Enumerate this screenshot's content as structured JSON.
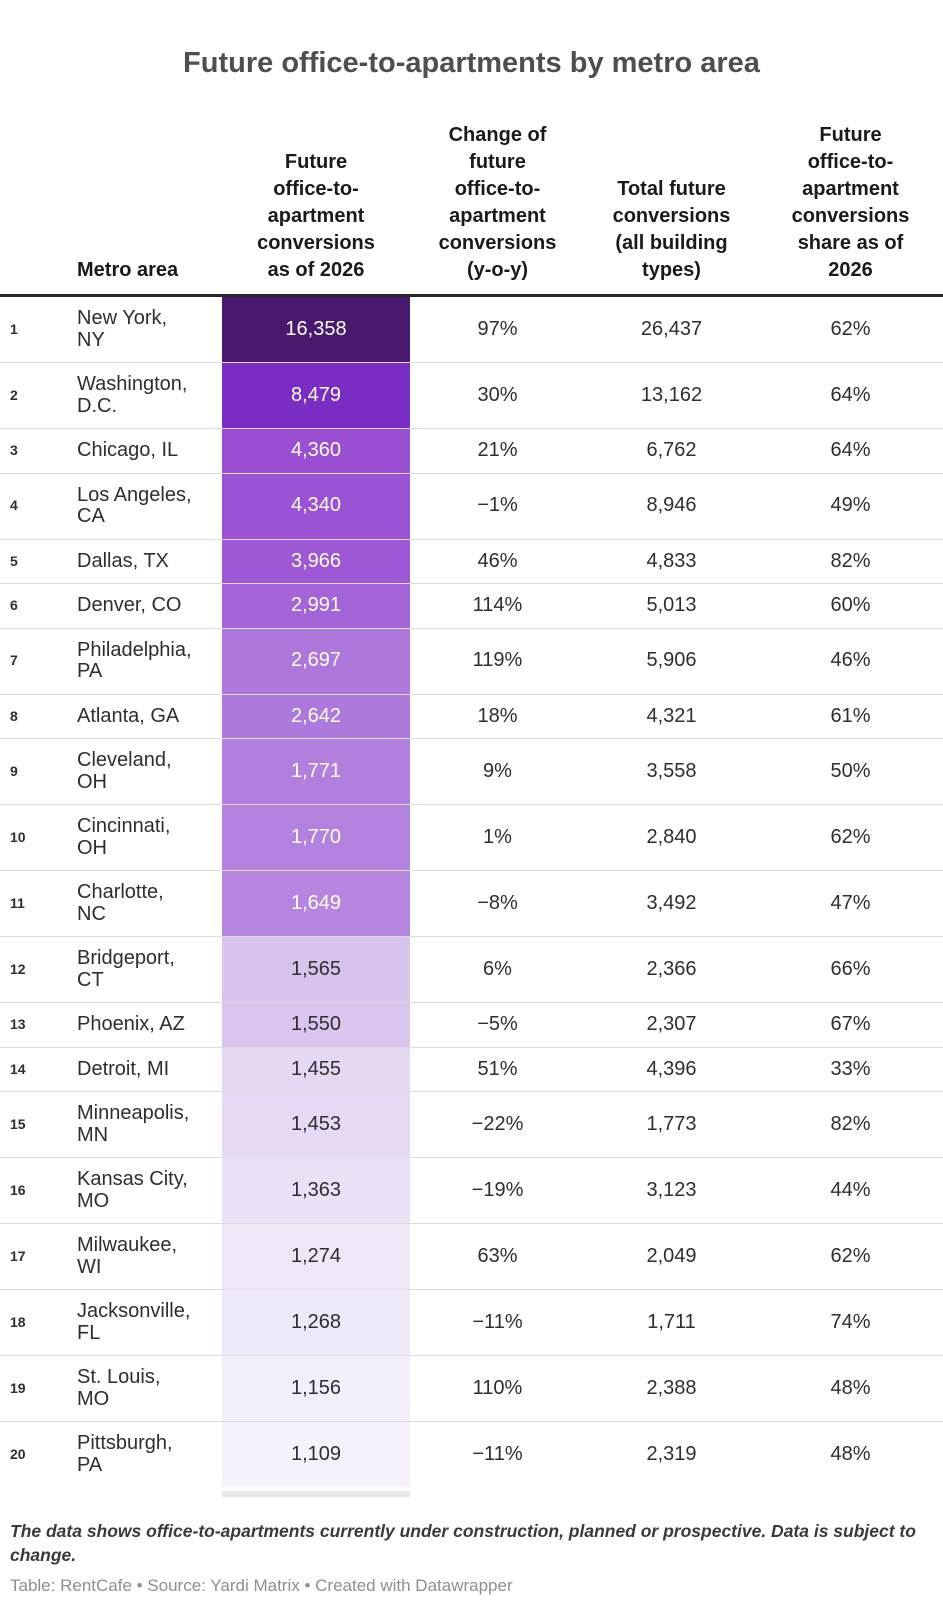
{
  "title": "Future office-to-apartments by metro area",
  "colors": {
    "background": "#ffffff",
    "title_text": "#4e4e4e",
    "header_text": "#1a1a1a",
    "header_rule": "#282828",
    "row_separator": "#dcdcdc",
    "body_text": "#2e2e2e",
    "footnote_text": "#3a3a3a",
    "source_text": "#8f8f8f",
    "heatmap_dark": "#491970",
    "heatmap_light": "#f6f1fb"
  },
  "table": {
    "columns": [
      {
        "key": "rank",
        "label": ""
      },
      {
        "key": "metro",
        "label": "Metro area"
      },
      {
        "key": "conversions",
        "label": "Future\noffice-to-\napartment\nconversions\nas of 2026"
      },
      {
        "key": "change",
        "label": "Change of\nfuture\noffice-to-\napartment\nconversions\n(y-o-y)"
      },
      {
        "key": "total",
        "label": "Total future\nconversions\n(all building\ntypes)"
      },
      {
        "key": "share",
        "label": "Future\noffice-to-\napartment\nconversions\nshare as of\n2026"
      }
    ],
    "rows": [
      {
        "rank": "1",
        "metro": "New York,\nNY",
        "conversions": "16,358",
        "change": "97%",
        "total": "26,437",
        "share": "62%",
        "cell_bg": "#491970",
        "cell_text": "#ffffff"
      },
      {
        "rank": "2",
        "metro": "Washington,\nD.C.",
        "conversions": "8,479",
        "change": "30%",
        "total": "13,162",
        "share": "64%",
        "cell_bg": "#7b2cc2",
        "cell_text": "#ffffff"
      },
      {
        "rank": "3",
        "metro": "Chicago, IL",
        "conversions": "4,360",
        "change": "21%",
        "total": "6,762",
        "share": "64%",
        "cell_bg": "#9a4fd3",
        "cell_text": "#ffffff"
      },
      {
        "rank": "4",
        "metro": "Los Angeles,\nCA",
        "conversions": "4,340",
        "change": "−1%",
        "total": "8,946",
        "share": "49%",
        "cell_bg": "#9b52d4",
        "cell_text": "#ffffff"
      },
      {
        "rank": "5",
        "metro": "Dallas, TX",
        "conversions": "3,966",
        "change": "46%",
        "total": "4,833",
        "share": "82%",
        "cell_bg": "#9e58d6",
        "cell_text": "#ffffff"
      },
      {
        "rank": "6",
        "metro": "Denver, CO",
        "conversions": "2,991",
        "change": "114%",
        "total": "5,013",
        "share": "60%",
        "cell_bg": "#a464d8",
        "cell_text": "#ffffff"
      },
      {
        "rank": "7",
        "metro": "Philadelphia,\nPA",
        "conversions": "2,697",
        "change": "119%",
        "total": "5,906",
        "share": "46%",
        "cell_bg": "#ad77db",
        "cell_text": "#ffffff"
      },
      {
        "rank": "8",
        "metro": "Atlanta, GA",
        "conversions": "2,642",
        "change": "18%",
        "total": "4,321",
        "share": "61%",
        "cell_bg": "#ae79dc",
        "cell_text": "#ffffff"
      },
      {
        "rank": "9",
        "metro": "Cleveland,\nOH",
        "conversions": "1,771",
        "change": "9%",
        "total": "3,558",
        "share": "50%",
        "cell_bg": "#b27fde",
        "cell_text": "#ffffff"
      },
      {
        "rank": "10",
        "metro": "Cincinnati,\nOH",
        "conversions": "1,770",
        "change": "1%",
        "total": "2,840",
        "share": "62%",
        "cell_bg": "#b382df",
        "cell_text": "#ffffff"
      },
      {
        "rank": "11",
        "metro": "Charlotte,\nNC",
        "conversions": "1,649",
        "change": "−8%",
        "total": "3,492",
        "share": "47%",
        "cell_bg": "#b685e0",
        "cell_text": "#ffffff"
      },
      {
        "rank": "12",
        "metro": "Bridgeport,\nCT",
        "conversions": "1,565",
        "change": "6%",
        "total": "2,366",
        "share": "66%",
        "cell_bg": "#d8c3ec",
        "cell_text": "#2e2e2e"
      },
      {
        "rank": "13",
        "metro": "Phoenix, AZ",
        "conversions": "1,550",
        "change": "−5%",
        "total": "2,307",
        "share": "67%",
        "cell_bg": "#d9c5ed",
        "cell_text": "#2e2e2e"
      },
      {
        "rank": "14",
        "metro": "Detroit, MI",
        "conversions": "1,455",
        "change": "51%",
        "total": "4,396",
        "share": "33%",
        "cell_bg": "#e5d8f3",
        "cell_text": "#2e2e2e"
      },
      {
        "rank": "15",
        "metro": "Minneapolis,\nMN",
        "conversions": "1,453",
        "change": "−22%",
        "total": "1,773",
        "share": "82%",
        "cell_bg": "#e6d9f3",
        "cell_text": "#2e2e2e"
      },
      {
        "rank": "16",
        "metro": "Kansas City,\nMO",
        "conversions": "1,363",
        "change": "−19%",
        "total": "3,123",
        "share": "44%",
        "cell_bg": "#ebe1f6",
        "cell_text": "#2e2e2e"
      },
      {
        "rank": "17",
        "metro": "Milwaukee,\nWI",
        "conversions": "1,274",
        "change": "63%",
        "total": "2,049",
        "share": "62%",
        "cell_bg": "#efe7f8",
        "cell_text": "#2e2e2e"
      },
      {
        "rank": "18",
        "metro": "Jacksonville,\nFL",
        "conversions": "1,268",
        "change": "−11%",
        "total": "1,711",
        "share": "74%",
        "cell_bg": "#efe8f8",
        "cell_text": "#2e2e2e"
      },
      {
        "rank": "19",
        "metro": "St. Louis,\nMO",
        "conversions": "1,156",
        "change": "110%",
        "total": "2,388",
        "share": "48%",
        "cell_bg": "#f4eefa",
        "cell_text": "#2e2e2e"
      },
      {
        "rank": "20",
        "metro": "Pittsburgh,\nPA",
        "conversions": "1,109",
        "change": "−11%",
        "total": "2,319",
        "share": "48%",
        "cell_bg": "#f6f1fb",
        "cell_text": "#2e2e2e"
      }
    ]
  },
  "footnote": "The data shows office-to-apartments currently under construction, planned or prospective. Data is subject to change.",
  "source": "Table: RentCafe • Source: Yardi Matrix • Created with Datawrapper",
  "chart_data": {
    "type": "table",
    "title": "Future office-to-apartments by metro area",
    "column_headers": [
      "Metro area",
      "Future office-to-apartment conversions as of 2026",
      "Change of future office-to-apartment conversions (y-o-y)",
      "Total future conversions (all building types)",
      "Future office-to-apartment conversions share as of 2026"
    ],
    "metros": [
      "New York, NY",
      "Washington, D.C.",
      "Chicago, IL",
      "Los Angeles, CA",
      "Dallas, TX",
      "Denver, CO",
      "Philadelphia, PA",
      "Atlanta, GA",
      "Cleveland, OH",
      "Cincinnati, OH",
      "Charlotte, NC",
      "Bridgeport, CT",
      "Phoenix, AZ",
      "Detroit, MI",
      "Minneapolis, MN",
      "Kansas City, MO",
      "Milwaukee, WI",
      "Jacksonville, FL",
      "St. Louis, MO",
      "Pittsburgh, PA"
    ],
    "series": [
      {
        "name": "Future office-to-apartment conversions as of 2026",
        "values": [
          16358,
          8479,
          4360,
          4340,
          3966,
          2991,
          2697,
          2642,
          1771,
          1770,
          1649,
          1565,
          1550,
          1455,
          1453,
          1363,
          1274,
          1268,
          1156,
          1109
        ]
      },
      {
        "name": "Change of future office-to-apartment conversions (y-o-y) %",
        "values": [
          97,
          30,
          21,
          -1,
          46,
          114,
          119,
          18,
          9,
          1,
          -8,
          6,
          -5,
          51,
          -22,
          -19,
          63,
          -11,
          110,
          -11
        ]
      },
      {
        "name": "Total future conversions (all building types)",
        "values": [
          26437,
          13162,
          6762,
          8946,
          4833,
          5013,
          5906,
          4321,
          3558,
          2840,
          3492,
          2366,
          2307,
          4396,
          1773,
          3123,
          2049,
          1711,
          2388,
          2319
        ]
      },
      {
        "name": "Future office-to-apartment conversions share as of 2026 %",
        "values": [
          62,
          64,
          64,
          49,
          82,
          60,
          46,
          61,
          50,
          62,
          47,
          66,
          67,
          33,
          82,
          44,
          62,
          74,
          48,
          48
        ]
      }
    ],
    "heatmap_column": "Future office-to-apartment conversions as of 2026",
    "heatmap_palette": [
      "#491970",
      "#7b2cc2",
      "#9a4fd3",
      "#b685e0",
      "#d8c3ec",
      "#f6f1fb"
    ]
  }
}
